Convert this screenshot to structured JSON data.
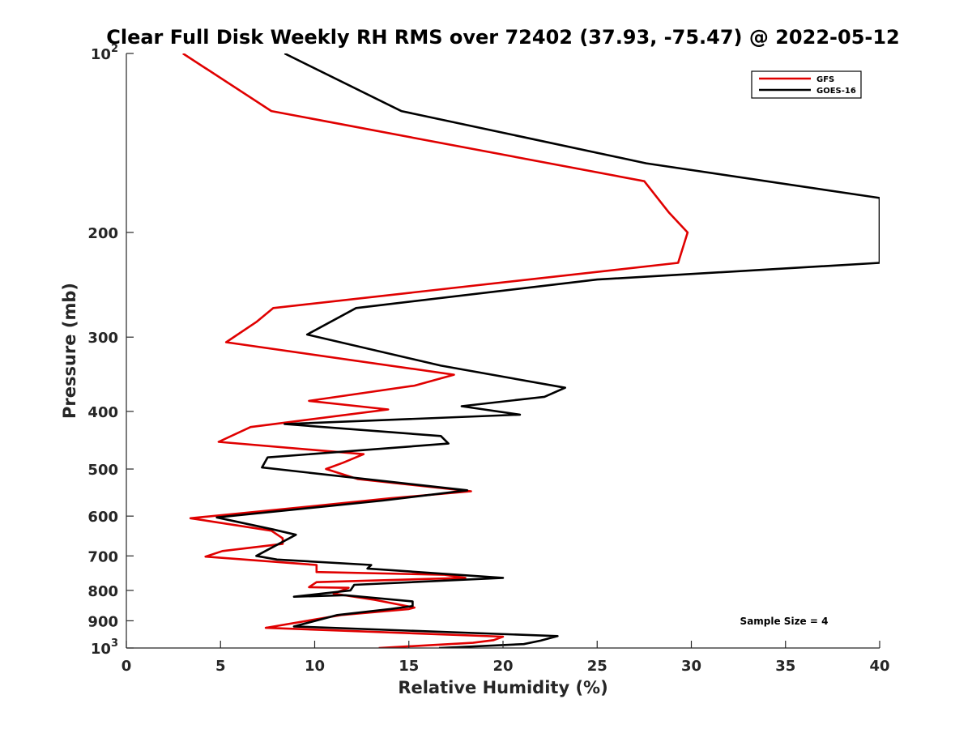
{
  "chart_data": {
    "type": "line",
    "title": "Clear Full Disk Weekly RH RMS over 72402 (37.93, -75.47) @ 2022-05-12",
    "xlabel": "Relative Humidity (%)",
    "ylabel": "Pressure (mb)",
    "xlim": [
      0,
      40
    ],
    "ylim": [
      100,
      1000
    ],
    "yscale": "log",
    "y_reversed": true,
    "x_ticks": [
      0,
      5,
      10,
      15,
      20,
      25,
      30,
      35,
      40
    ],
    "x_tick_labels": [
      "0",
      "5",
      "10",
      "15",
      "20",
      "25",
      "30",
      "35",
      "40"
    ],
    "y_ticks": [
      100,
      200,
      300,
      400,
      500,
      600,
      700,
      800,
      900,
      1000
    ],
    "y_tick_labels": [
      {
        "base": "10",
        "exp": "2"
      },
      {
        "base": "200",
        "exp": ""
      },
      {
        "base": "300",
        "exp": ""
      },
      {
        "base": "400",
        "exp": ""
      },
      {
        "base": "500",
        "exp": ""
      },
      {
        "base": "600",
        "exp": ""
      },
      {
        "base": "700",
        "exp": ""
      },
      {
        "base": "800",
        "exp": ""
      },
      {
        "base": "900",
        "exp": ""
      },
      {
        "base": "10",
        "exp": "3"
      }
    ],
    "legend_position": "top-right",
    "annotation": "Sample Size = 4",
    "series": [
      {
        "name": "GFS",
        "color": "#e00000",
        "points": [
          [
            3.0,
            100
          ],
          [
            7.7,
            125
          ],
          [
            27.5,
            164
          ],
          [
            28.8,
            185
          ],
          [
            29.8,
            200
          ],
          [
            29.3,
            225
          ],
          [
            7.8,
            268
          ],
          [
            6.9,
            283
          ],
          [
            5.3,
            306
          ],
          [
            17.4,
            347
          ],
          [
            15.3,
            362
          ],
          [
            9.7,
            384
          ],
          [
            13.9,
            397
          ],
          [
            6.6,
            425
          ],
          [
            4.9,
            450
          ],
          [
            12.6,
            472
          ],
          [
            11.5,
            488
          ],
          [
            10.6,
            500
          ],
          [
            12.3,
            520
          ],
          [
            18.3,
            545
          ],
          [
            14.0,
            560
          ],
          [
            8.1,
            585
          ],
          [
            3.4,
            605
          ],
          [
            7.7,
            635
          ],
          [
            8.3,
            654
          ],
          [
            8.3,
            668
          ],
          [
            5.1,
            687
          ],
          [
            4.2,
            702
          ],
          [
            10.1,
            725
          ],
          [
            10.1,
            745
          ],
          [
            16.9,
            753
          ],
          [
            18.0,
            762
          ],
          [
            10.1,
            775
          ],
          [
            9.7,
            790
          ],
          [
            11.8,
            792
          ],
          [
            11.0,
            810
          ],
          [
            13.2,
            830
          ],
          [
            15.3,
            855
          ],
          [
            15.0,
            860
          ],
          [
            11.4,
            880
          ],
          [
            7.4,
            925
          ],
          [
            20.0,
            957
          ],
          [
            19.5,
            970
          ],
          [
            18.4,
            980
          ],
          [
            13.4,
            1000
          ]
        ]
      },
      {
        "name": "GOES-16",
        "color": "#000000",
        "points": [
          [
            8.4,
            100
          ],
          [
            14.6,
            125
          ],
          [
            27.6,
            153
          ],
          [
            40.0,
            175
          ],
          [
            40.0,
            225
          ],
          [
            25.0,
            240
          ],
          [
            12.2,
            268
          ],
          [
            9.6,
            297
          ],
          [
            16.7,
            335
          ],
          [
            23.3,
            365
          ],
          [
            22.2,
            378
          ],
          [
            17.8,
            392
          ],
          [
            20.9,
            405
          ],
          [
            8.4,
            420
          ],
          [
            16.7,
            440
          ],
          [
            17.1,
            453
          ],
          [
            7.5,
            478
          ],
          [
            7.2,
            497
          ],
          [
            18.1,
            543
          ],
          [
            13.6,
            565
          ],
          [
            4.8,
            603
          ],
          [
            7.8,
            632
          ],
          [
            9.0,
            645
          ],
          [
            6.9,
            700
          ],
          [
            8.0,
            710
          ],
          [
            13.0,
            725
          ],
          [
            12.8,
            735
          ],
          [
            20.0,
            762
          ],
          [
            12.1,
            783
          ],
          [
            11.9,
            800
          ],
          [
            8.9,
            820
          ],
          [
            11.6,
            815
          ],
          [
            15.2,
            835
          ],
          [
            15.2,
            850
          ],
          [
            14.0,
            860
          ],
          [
            11.2,
            880
          ],
          [
            8.9,
            920
          ],
          [
            22.9,
            955
          ],
          [
            22.0,
            972
          ],
          [
            21.1,
            985
          ],
          [
            16.6,
            1000
          ]
        ]
      }
    ]
  }
}
